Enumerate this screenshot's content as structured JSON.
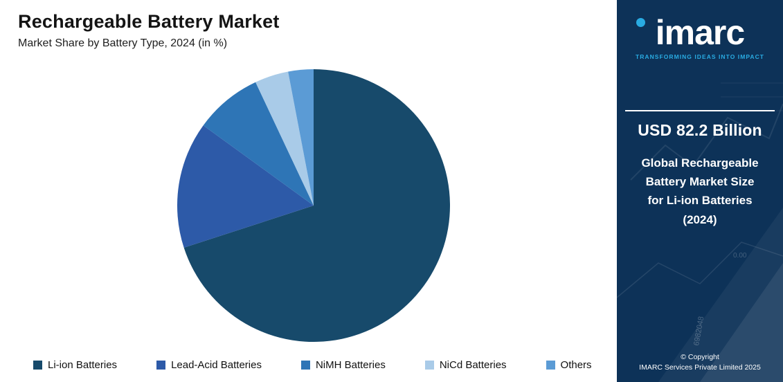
{
  "header": {
    "title": "Rechargeable Battery Market",
    "subtitle": "Market Share by Battery Type, 2024 (in %)"
  },
  "chart_data": {
    "type": "pie",
    "title": "Rechargeable Battery Market",
    "subtitle": "Market Share by Battery Type, 2024 (in %)",
    "categories": [
      "Li-ion Batteries",
      "Lead-Acid Batteries",
      "NiMH Batteries",
      "NiCd Batteries",
      "Others"
    ],
    "values": [
      70,
      15,
      8,
      4,
      3
    ],
    "colors": [
      "#174a6b",
      "#2d5aa8",
      "#2e75b6",
      "#a9cbe8",
      "#5b9bd5"
    ],
    "start_angle_deg": -90,
    "direction": "clockwise",
    "legend_position": "bottom"
  },
  "panel": {
    "logo_text": "imarc",
    "tagline": "TRANSFORMING IDEAS INTO IMPACT",
    "stat_value": "USD 82.2 Billion",
    "stat_label_line1": "Global Rechargeable",
    "stat_label_line2": "Battery Market Size",
    "stat_label_line3": "for Li-ion Batteries",
    "stat_label_line4": "(2024)",
    "copyright_line1": "© Copyright",
    "copyright_line2": "IMARC Services Private Limited 2025",
    "accent_color": "#29abe2",
    "bg_color": "#0d3258",
    "decor_number": "6982048",
    "decor_tick": "0.00"
  }
}
